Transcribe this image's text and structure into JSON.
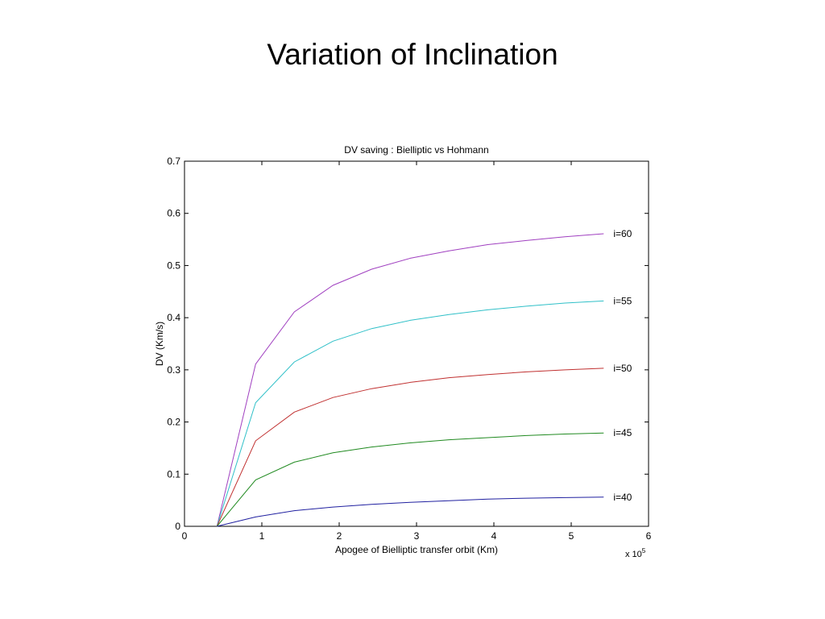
{
  "slide": {
    "title": "Variation of Inclination"
  },
  "chart_data": {
    "type": "line",
    "title": "DV saving : Bielliptic vs Hohmann",
    "xlabel": "Apogee of Bielliptic transfer orbit (Km)",
    "ylabel": "DV (Km/s)",
    "x_multiplier_base": "x 10",
    "x_multiplier_exp": "5",
    "xlim": [
      0,
      6
    ],
    "ylim": [
      0,
      0.7
    ],
    "xticks": [
      0,
      1,
      2,
      3,
      4,
      5,
      6
    ],
    "yticks": [
      0,
      0.1,
      0.2,
      0.3,
      0.4,
      0.5,
      0.6,
      0.7
    ],
    "xtick_labels": [
      "0",
      "1",
      "2",
      "3",
      "4",
      "5",
      "6"
    ],
    "ytick_labels": [
      "0",
      "0.1",
      "0.2",
      "0.3",
      "0.4",
      "0.5",
      "0.6",
      "0.7"
    ],
    "grid": false,
    "x": [
      0.42,
      0.92,
      1.42,
      1.92,
      2.42,
      2.92,
      3.42,
      3.92,
      4.42,
      4.92,
      5.42
    ],
    "series": [
      {
        "name": "i=60",
        "color": "#a040c0",
        "values": [
          0,
          0.311,
          0.411,
          0.462,
          0.493,
          0.514,
          0.528,
          0.54,
          0.548,
          0.555,
          0.561
        ]
      },
      {
        "name": "i=55",
        "color": "#30c0c8",
        "values": [
          0,
          0.237,
          0.315,
          0.355,
          0.379,
          0.395,
          0.406,
          0.415,
          0.422,
          0.428,
          0.432
        ]
      },
      {
        "name": "i=50",
        "color": "#c03030",
        "values": [
          0,
          0.164,
          0.219,
          0.247,
          0.264,
          0.276,
          0.285,
          0.291,
          0.296,
          0.3,
          0.303
        ]
      },
      {
        "name": "i=45",
        "color": "#208a20",
        "values": [
          0,
          0.089,
          0.123,
          0.141,
          0.152,
          0.16,
          0.166,
          0.17,
          0.174,
          0.177,
          0.179
        ]
      },
      {
        "name": "i=40",
        "color": "#2020a0",
        "values": [
          0,
          0.018,
          0.03,
          0.037,
          0.042,
          0.046,
          0.049,
          0.052,
          0.054,
          0.055,
          0.056
        ]
      }
    ]
  }
}
